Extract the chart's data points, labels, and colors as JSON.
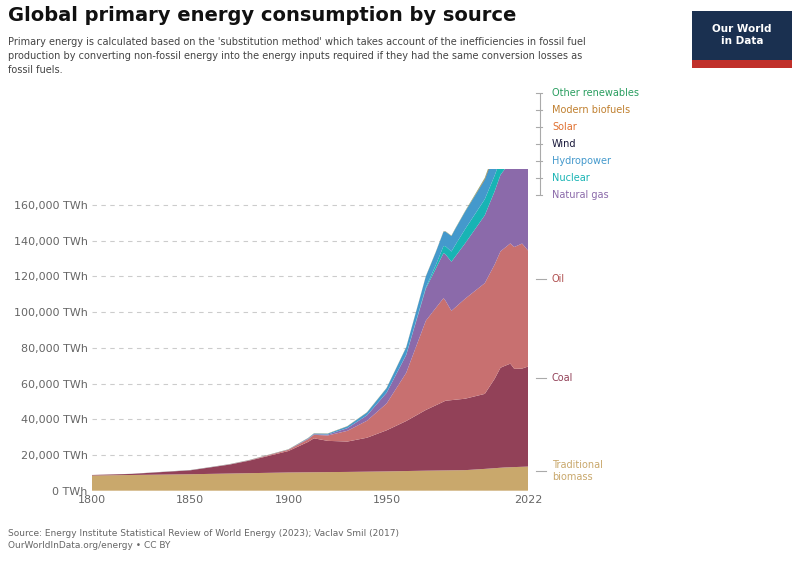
{
  "title": "Global primary energy consumption by source",
  "subtitle": "Primary energy is calculated based on the 'substitution method' which takes account of the inefficiencies in fossil fuel\nproduction by converting non-fossil energy into the energy inputs required if they had the same conversion losses as\nfossil fuels.",
  "source": "Source: Energy Institute Statistical Review of World Energy (2023); Vaclav Smil (2017)\nOurWorldInData.org/energy • CC BY",
  "xlim": [
    1800,
    2022
  ],
  "ylim": [
    0,
    180000
  ],
  "yticks": [
    0,
    20000,
    40000,
    60000,
    80000,
    100000,
    120000,
    140000,
    160000
  ],
  "xticks": [
    1800,
    1850,
    1900,
    1950,
    2022
  ],
  "colors": {
    "Traditional biomass": "#c9a86c",
    "Coal": "#924158",
    "Oil": "#c87070",
    "Natural gas": "#8b6aaa",
    "Nuclear": "#18b4b4",
    "Hydropower": "#4499cc",
    "Wind": "#18183a",
    "Solar": "#e07030",
    "Modern biofuels": "#c08030",
    "Other renewables": "#2a9e60"
  },
  "legend_text_colors": {
    "Other renewables": "#2a9e60",
    "Modern biofuels": "#c08030",
    "Solar": "#e07030",
    "Wind": "#18183a",
    "Hydropower": "#4499cc",
    "Nuclear": "#18b4b4",
    "Natural gas": "#8b6aaa",
    "Oil": "#b05050",
    "Coal": "#924158",
    "Traditional biomass": "#c9a86c"
  },
  "background_color": "#ffffff",
  "owid_box_color": "#1a3050",
  "owid_red_color": "#c0302a",
  "owid_text_color": "#ffffff",
  "grid_color": "#cccccc",
  "tick_color": "#666666"
}
